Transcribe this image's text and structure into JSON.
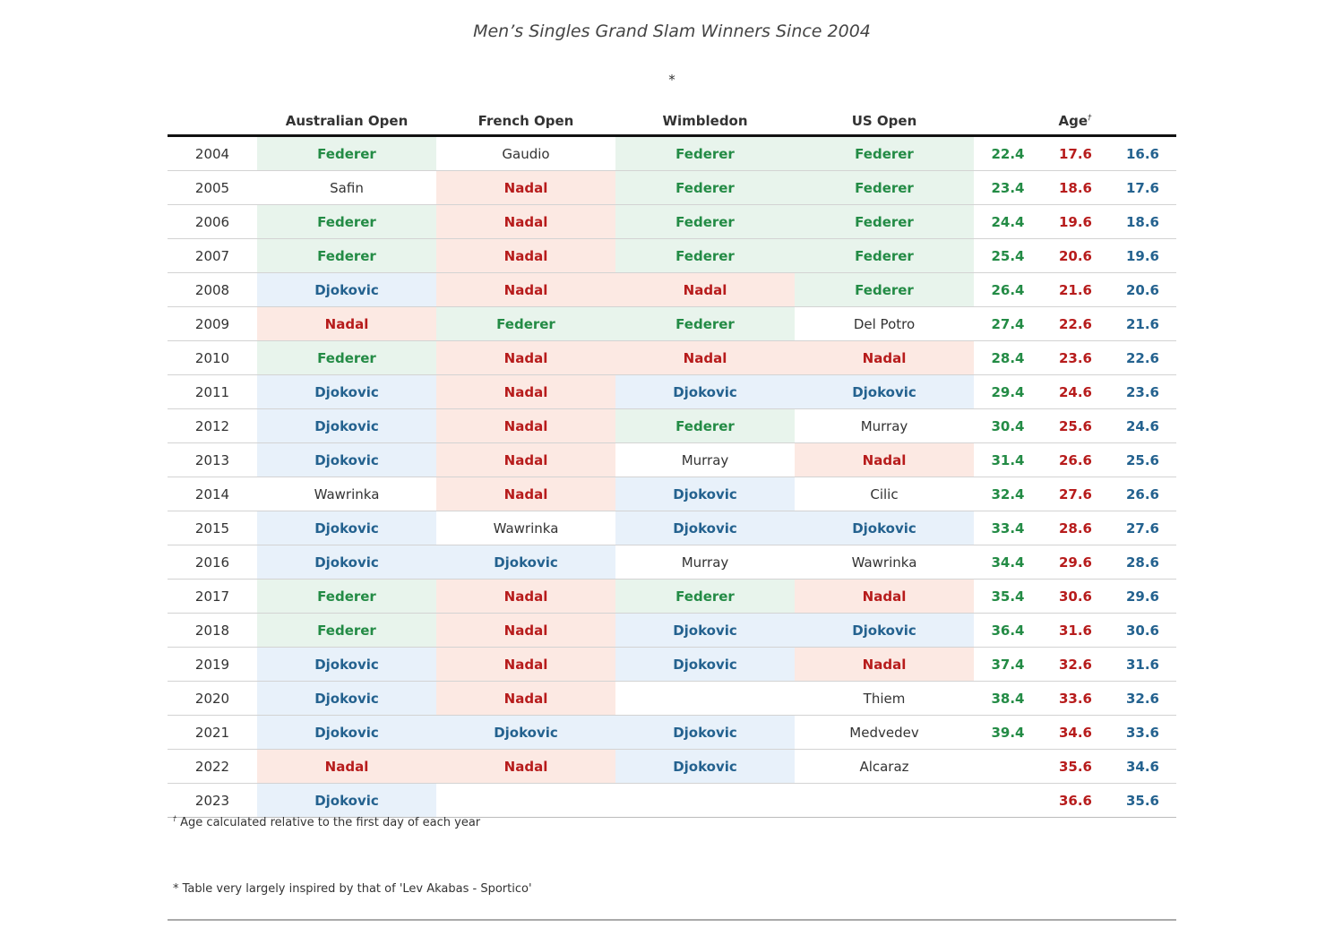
{
  "title": "Men’s Singles Grand Slam Winners Since 2004",
  "subtitle": "*",
  "header": {
    "year": "",
    "australian_open": "Australian Open",
    "french_open": "French Open",
    "wimbledon": "Wimbledon",
    "us_open": "US Open",
    "age": "Age",
    "age_mark": "†"
  },
  "colors": {
    "federer_text": "#238b45",
    "federer_bg": "#e8f4ec",
    "nadal_text": "#b71c1c",
    "nadal_bg": "#fce9e3",
    "djokovic_text": "#24628f",
    "djokovic_bg": "#e8f1fa"
  },
  "rows": [
    {
      "year": "2004",
      "ao": "Federer",
      "fo": "Gaudio",
      "wim": "Federer",
      "uso": "Federer",
      "age_federer": "22.4",
      "age_nadal": "17.6",
      "age_djokovic": "16.6"
    },
    {
      "year": "2005",
      "ao": "Safin",
      "fo": "Nadal",
      "wim": "Federer",
      "uso": "Federer",
      "age_federer": "23.4",
      "age_nadal": "18.6",
      "age_djokovic": "17.6"
    },
    {
      "year": "2006",
      "ao": "Federer",
      "fo": "Nadal",
      "wim": "Federer",
      "uso": "Federer",
      "age_federer": "24.4",
      "age_nadal": "19.6",
      "age_djokovic": "18.6"
    },
    {
      "year": "2007",
      "ao": "Federer",
      "fo": "Nadal",
      "wim": "Federer",
      "uso": "Federer",
      "age_federer": "25.4",
      "age_nadal": "20.6",
      "age_djokovic": "19.6"
    },
    {
      "year": "2008",
      "ao": "Djokovic",
      "fo": "Nadal",
      "wim": "Nadal",
      "uso": "Federer",
      "age_federer": "26.4",
      "age_nadal": "21.6",
      "age_djokovic": "20.6"
    },
    {
      "year": "2009",
      "ao": "Nadal",
      "fo": "Federer",
      "wim": "Federer",
      "uso": "Del Potro",
      "age_federer": "27.4",
      "age_nadal": "22.6",
      "age_djokovic": "21.6"
    },
    {
      "year": "2010",
      "ao": "Federer",
      "fo": "Nadal",
      "wim": "Nadal",
      "uso": "Nadal",
      "age_federer": "28.4",
      "age_nadal": "23.6",
      "age_djokovic": "22.6"
    },
    {
      "year": "2011",
      "ao": "Djokovic",
      "fo": "Nadal",
      "wim": "Djokovic",
      "uso": "Djokovic",
      "age_federer": "29.4",
      "age_nadal": "24.6",
      "age_djokovic": "23.6"
    },
    {
      "year": "2012",
      "ao": "Djokovic",
      "fo": "Nadal",
      "wim": "Federer",
      "uso": "Murray",
      "age_federer": "30.4",
      "age_nadal": "25.6",
      "age_djokovic": "24.6"
    },
    {
      "year": "2013",
      "ao": "Djokovic",
      "fo": "Nadal",
      "wim": "Murray",
      "uso": "Nadal",
      "age_federer": "31.4",
      "age_nadal": "26.6",
      "age_djokovic": "25.6"
    },
    {
      "year": "2014",
      "ao": "Wawrinka",
      "fo": "Nadal",
      "wim": "Djokovic",
      "uso": "Cilic",
      "age_federer": "32.4",
      "age_nadal": "27.6",
      "age_djokovic": "26.6"
    },
    {
      "year": "2015",
      "ao": "Djokovic",
      "fo": "Wawrinka",
      "wim": "Djokovic",
      "uso": "Djokovic",
      "age_federer": "33.4",
      "age_nadal": "28.6",
      "age_djokovic": "27.6"
    },
    {
      "year": "2016",
      "ao": "Djokovic",
      "fo": "Djokovic",
      "wim": "Murray",
      "uso": "Wawrinka",
      "age_federer": "34.4",
      "age_nadal": "29.6",
      "age_djokovic": "28.6"
    },
    {
      "year": "2017",
      "ao": "Federer",
      "fo": "Nadal",
      "wim": "Federer",
      "uso": "Nadal",
      "age_federer": "35.4",
      "age_nadal": "30.6",
      "age_djokovic": "29.6"
    },
    {
      "year": "2018",
      "ao": "Federer",
      "fo": "Nadal",
      "wim": "Djokovic",
      "uso": "Djokovic",
      "age_federer": "36.4",
      "age_nadal": "31.6",
      "age_djokovic": "30.6"
    },
    {
      "year": "2019",
      "ao": "Djokovic",
      "fo": "Nadal",
      "wim": "Djokovic",
      "uso": "Nadal",
      "age_federer": "37.4",
      "age_nadal": "32.6",
      "age_djokovic": "31.6"
    },
    {
      "year": "2020",
      "ao": "Djokovic",
      "fo": "Nadal",
      "wim": "",
      "uso": "Thiem",
      "age_federer": "38.4",
      "age_nadal": "33.6",
      "age_djokovic": "32.6"
    },
    {
      "year": "2021",
      "ao": "Djokovic",
      "fo": "Djokovic",
      "wim": "Djokovic",
      "uso": "Medvedev",
      "age_federer": "39.4",
      "age_nadal": "34.6",
      "age_djokovic": "33.6"
    },
    {
      "year": "2022",
      "ao": "Nadal",
      "fo": "Nadal",
      "wim": "Djokovic",
      "uso": "Alcaraz",
      "age_federer": "",
      "age_nadal": "35.6",
      "age_djokovic": "34.6"
    },
    {
      "year": "2023",
      "ao": "Djokovic",
      "fo": "",
      "wim": "",
      "uso": "",
      "age_federer": "",
      "age_nadal": "36.6",
      "age_djokovic": "35.6"
    }
  ],
  "footnote": {
    "mark": "†",
    "text": "Age calculated relative to the first day of each year"
  },
  "source_note": "* Table very largely inspired by that of 'Lev Akabas - Sportico'"
}
